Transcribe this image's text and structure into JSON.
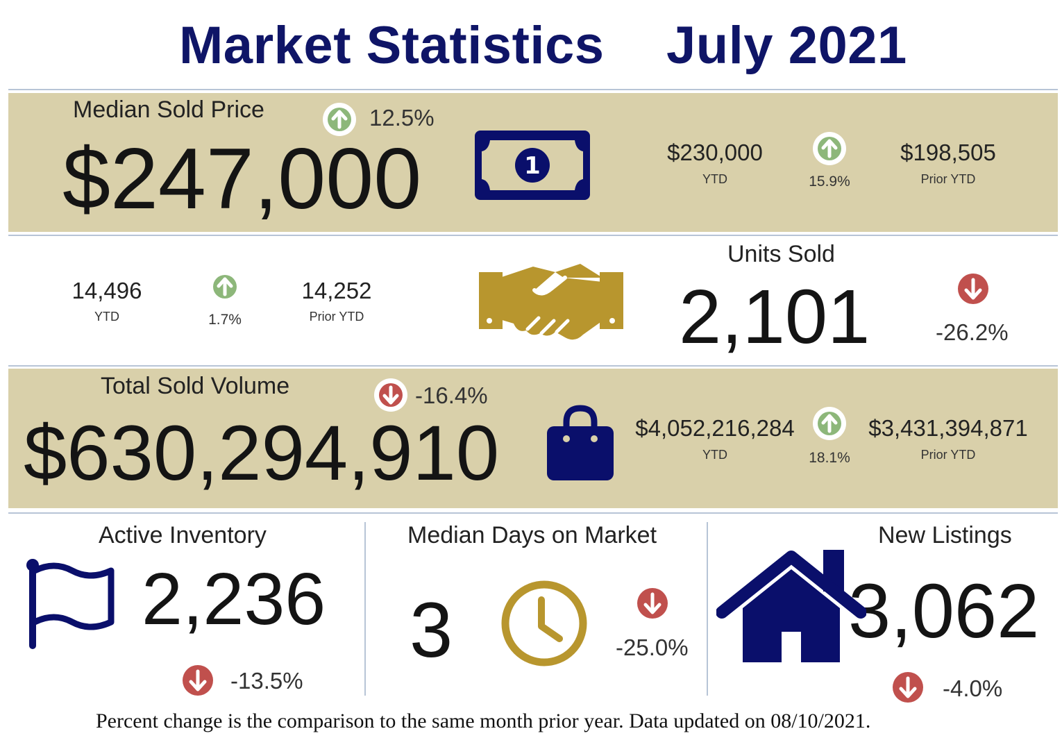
{
  "header": {
    "title": "Market Statistics",
    "period": "July 2021"
  },
  "median_sold_price": {
    "label": "Median Sold Price",
    "value": "$247,000",
    "change": "12.5%",
    "direction": "up",
    "ytd": {
      "value": "$230,000",
      "caption": "YTD"
    },
    "ytd_change": "15.9%",
    "prior_ytd": {
      "value": "$198,505",
      "caption": "Prior YTD"
    },
    "icon": "money-bill-icon"
  },
  "units_sold": {
    "label": "Units Sold",
    "value": "2,101",
    "change": "-26.2%",
    "direction": "down",
    "ytd": {
      "value": "14,496",
      "caption": "YTD"
    },
    "ytd_change": "1.7%",
    "prior_ytd": {
      "value": "14,252",
      "caption": "Prior YTD"
    },
    "icon": "handshake-icon"
  },
  "total_sold_volume": {
    "label": "Total Sold Volume",
    "value": "$630,294,910",
    "change": "-16.4%",
    "direction": "down",
    "ytd": {
      "value": "$4,052,216,284",
      "caption": "YTD"
    },
    "ytd_change": "18.1%",
    "prior_ytd": {
      "value": "$3,431,394,871",
      "caption": "Prior YTD"
    },
    "icon": "shopping-bag-icon"
  },
  "active_inventory": {
    "label": "Active Inventory",
    "value": "2,236",
    "change": "-13.5%",
    "direction": "down",
    "icon": "flag-icon"
  },
  "median_days_on_market": {
    "label": "Median Days on Market",
    "value": "3",
    "change": "-25.0%",
    "direction": "down",
    "icon": "clock-icon"
  },
  "new_listings": {
    "label": "New Listings",
    "value": "3,062",
    "change": "-4.0%",
    "direction": "down",
    "icon": "house-icon"
  },
  "footer": "Percent change is the comparison to the same month prior year. Data updated on 08/10/2021.",
  "colors": {
    "navy": "#0a0f6b",
    "gold": "#b8962e",
    "band": "#d9d0aa",
    "up": "#8db77a",
    "down": "#c0504d"
  }
}
